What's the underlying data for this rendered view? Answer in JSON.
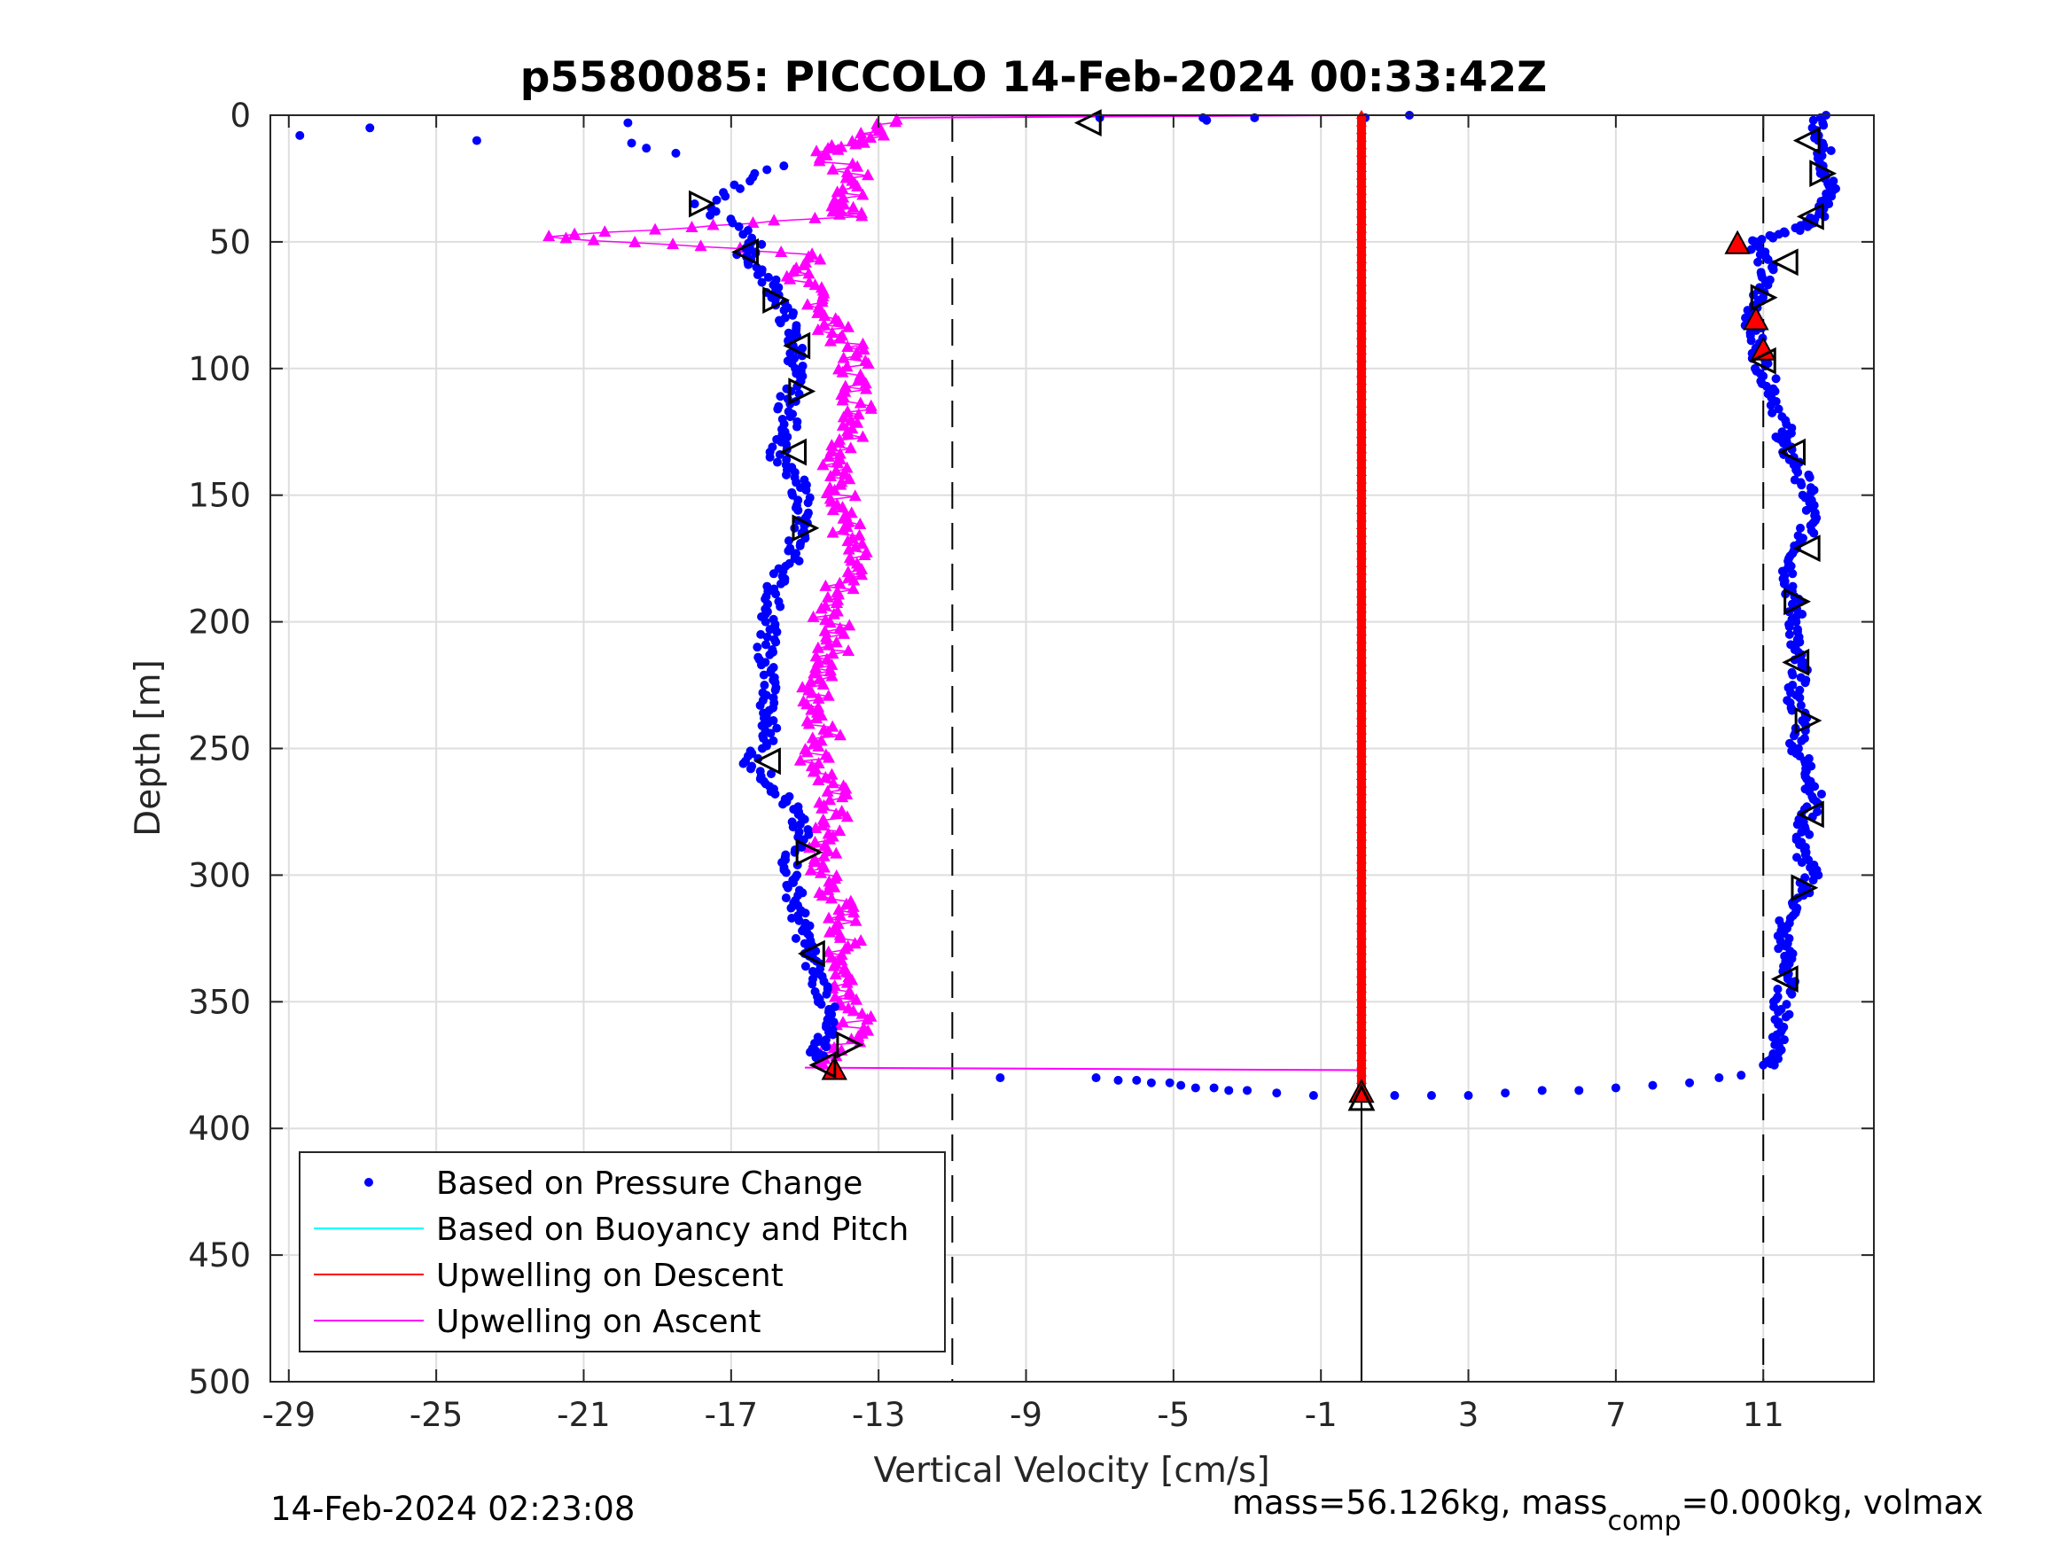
{
  "chart_data": {
    "type": "scatter",
    "title": "p5580085: PICCOLO 14-Feb-2024 00:33:42Z",
    "xlabel": "Vertical Velocity [cm/s]",
    "ylabel": "Depth [m]",
    "xlim": [
      -29.5,
      14
    ],
    "ylim": [
      0,
      500
    ],
    "y_reversed": true,
    "grid": true,
    "legend_position": "bottom-left",
    "x_ticks": [
      -29,
      -25,
      -21,
      -17,
      -13,
      -9,
      -5,
      -1,
      3,
      7,
      11
    ],
    "x_tick_labels": [
      "-29",
      "-25",
      "-21",
      "-17",
      "-13",
      "-9",
      "-5",
      "-1",
      "3",
      "7",
      "11"
    ],
    "y_ticks": [
      0,
      50,
      100,
      150,
      200,
      250,
      300,
      350,
      400,
      450,
      500
    ],
    "y_tick_labels": [
      "0",
      "50",
      "100",
      "150",
      "200",
      "250",
      "300",
      "350",
      "400",
      "450",
      "500"
    ],
    "reference_lines": [
      {
        "x": -11,
        "style": "dashed"
      },
      {
        "x": 11,
        "style": "dashed"
      },
      {
        "x": 0.1,
        "style": "solid",
        "y_range": [
          385,
          500
        ]
      }
    ],
    "series": [
      {
        "name": "Based on Pressure Change",
        "marker": "dot",
        "color": "#0000ff",
        "descent_profile": [
          [
            12.5,
            0
          ],
          [
            12.6,
            10
          ],
          [
            12.7,
            20
          ],
          [
            12.8,
            30
          ],
          [
            12.5,
            40
          ],
          [
            12,
            45
          ],
          [
            10.8,
            50
          ],
          [
            11.1,
            60
          ],
          [
            10.9,
            70
          ],
          [
            10.7,
            80
          ],
          [
            10.8,
            90
          ],
          [
            11.0,
            100
          ],
          [
            11.3,
            110
          ],
          [
            11.6,
            125
          ],
          [
            11.5,
            130
          ],
          [
            12.0,
            140
          ],
          [
            12.2,
            150
          ],
          [
            12.3,
            160
          ],
          [
            12.0,
            170
          ],
          [
            11.7,
            180
          ],
          [
            11.8,
            190
          ],
          [
            11.9,
            200
          ],
          [
            11.8,
            210
          ],
          [
            12.0,
            220
          ],
          [
            11.8,
            230
          ],
          [
            12.1,
            240
          ],
          [
            11.9,
            250
          ],
          [
            12.3,
            260
          ],
          [
            12.4,
            270
          ],
          [
            12.1,
            280
          ],
          [
            12.0,
            290
          ],
          [
            12.3,
            300
          ],
          [
            12.0,
            310
          ],
          [
            11.5,
            320
          ],
          [
            11.6,
            330
          ],
          [
            11.7,
            340
          ],
          [
            11.5,
            350
          ],
          [
            11.5,
            360
          ],
          [
            11.4,
            370
          ],
          [
            11.3,
            375
          ]
        ],
        "ascent_profile": [
          [
            -15.8,
            20
          ],
          [
            -17.8,
            35
          ],
          [
            -16.3,
            50
          ],
          [
            -16.6,
            55
          ],
          [
            -16.0,
            65
          ],
          [
            -15.6,
            75
          ],
          [
            -15.4,
            85
          ],
          [
            -15.2,
            95
          ],
          [
            -15.3,
            105
          ],
          [
            -15.5,
            115
          ],
          [
            -15.4,
            125
          ],
          [
            -15.8,
            135
          ],
          [
            -15.2,
            145
          ],
          [
            -15.0,
            155
          ],
          [
            -15.2,
            165
          ],
          [
            -15.3,
            175
          ],
          [
            -15.8,
            185
          ],
          [
            -15.9,
            195
          ],
          [
            -16.0,
            205
          ],
          [
            -16.1,
            215
          ],
          [
            -15.9,
            225
          ],
          [
            -16.1,
            235
          ],
          [
            -15.9,
            245
          ],
          [
            -16.5,
            255
          ],
          [
            -15.8,
            265
          ],
          [
            -15.3,
            275
          ],
          [
            -15.1,
            285
          ],
          [
            -15.4,
            295
          ],
          [
            -15.3,
            305
          ],
          [
            -15.2,
            315
          ],
          [
            -15.0,
            325
          ],
          [
            -14.8,
            335
          ],
          [
            -14.5,
            345
          ],
          [
            -14.4,
            355
          ],
          [
            -14.5,
            365
          ],
          [
            -14.7,
            372
          ]
        ],
        "surface_points": [
          [
            -28.7,
            8
          ],
          [
            -26.8,
            5
          ],
          [
            -23.9,
            10
          ],
          [
            -19.8,
            3
          ],
          [
            -19.7,
            11
          ],
          [
            -19.3,
            13
          ],
          [
            -18.5,
            15
          ],
          [
            -7,
            1
          ],
          [
            -4.2,
            1
          ],
          [
            -4.1,
            2
          ],
          [
            -2.8,
            1
          ],
          [
            1.4,
            0
          ],
          [
            0.2,
            1
          ]
        ],
        "bottom_transition": [
          [
            -14.2,
            379
          ],
          [
            -9.7,
            380
          ],
          [
            -7.1,
            380
          ],
          [
            -6.5,
            381
          ],
          [
            -6.0,
            381
          ],
          [
            -5.6,
            382
          ],
          [
            -5.1,
            382
          ],
          [
            -4.8,
            383
          ],
          [
            -4.4,
            384
          ],
          [
            -3.9,
            384
          ],
          [
            -3.5,
            385
          ],
          [
            -3.0,
            385
          ],
          [
            -2.2,
            386
          ],
          [
            -1.2,
            387
          ],
          [
            0.1,
            387
          ],
          [
            1.0,
            387
          ],
          [
            2.0,
            387
          ],
          [
            3.0,
            387
          ],
          [
            4.0,
            386
          ],
          [
            5.0,
            385
          ],
          [
            6.0,
            385
          ],
          [
            7.0,
            384
          ],
          [
            8.0,
            383
          ],
          [
            9.0,
            382
          ],
          [
            9.8,
            380
          ],
          [
            10.4,
            379
          ],
          [
            11.0,
            375
          ]
        ]
      },
      {
        "name": "Based on Buoyancy and Pitch",
        "marker": "line",
        "color": "#00ffff",
        "points": []
      },
      {
        "name": "Upwelling on Descent",
        "marker": "filled-triangle",
        "color": "#ff0000",
        "profile": [
          [
            0.1,
            0
          ],
          [
            0.1,
            385
          ]
        ],
        "highlight_points": [
          [
            10.3,
            51
          ],
          [
            10.8,
            81
          ],
          [
            11.0,
            93
          ],
          [
            -14.2,
            377
          ],
          [
            0.1,
            386
          ]
        ]
      },
      {
        "name": "Upwelling on Ascent",
        "marker": "filled-triangle",
        "color": "#ff00ff",
        "profile": [
          [
            -12.5,
            2
          ],
          [
            -13.4,
            10
          ],
          [
            -14.5,
            15
          ],
          [
            -13.6,
            25
          ],
          [
            -14.0,
            35
          ],
          [
            -13.8,
            40
          ],
          [
            -21.9,
            48
          ],
          [
            -14.8,
            55
          ],
          [
            -15.2,
            65
          ],
          [
            -14.5,
            75
          ],
          [
            -14.2,
            85
          ],
          [
            -13.6,
            95
          ],
          [
            -13.7,
            105
          ],
          [
            -13.5,
            115
          ],
          [
            -13.6,
            125
          ],
          [
            -14.0,
            135
          ],
          [
            -14.2,
            145
          ],
          [
            -13.8,
            155
          ],
          [
            -13.9,
            165
          ],
          [
            -13.7,
            175
          ],
          [
            -14.0,
            185
          ],
          [
            -14.5,
            195
          ],
          [
            -14.1,
            205
          ],
          [
            -14.3,
            215
          ],
          [
            -14.8,
            225
          ],
          [
            -14.6,
            235
          ],
          [
            -14.4,
            245
          ],
          [
            -14.7,
            255
          ],
          [
            -14.3,
            265
          ],
          [
            -14.2,
            275
          ],
          [
            -14.5,
            285
          ],
          [
            -14.6,
            295
          ],
          [
            -14.3,
            305
          ],
          [
            -14.0,
            315
          ],
          [
            -13.9,
            325
          ],
          [
            -14.0,
            335
          ],
          [
            -13.8,
            345
          ],
          [
            -13.6,
            355
          ],
          [
            -13.8,
            365
          ],
          [
            -14.5,
            375
          ]
        ],
        "top_transition": [
          [
            -12.5,
            1
          ],
          [
            -0.1,
            0
          ]
        ],
        "bottom_transition": [
          [
            -15.0,
            376
          ],
          [
            0.1,
            377
          ]
        ]
      }
    ],
    "open_triangle_markers": [
      {
        "x": -7.3,
        "y": 3,
        "dir": "left"
      },
      {
        "x": 12.2,
        "y": 10,
        "dir": "left"
      },
      {
        "x": 12.6,
        "y": 23,
        "dir": "right"
      },
      {
        "x": 12.3,
        "y": 40,
        "dir": "left"
      },
      {
        "x": 11.6,
        "y": 58,
        "dir": "left"
      },
      {
        "x": 11.0,
        "y": 72,
        "dir": "right"
      },
      {
        "x": 11.0,
        "y": 97,
        "dir": "left"
      },
      {
        "x": 11.8,
        "y": 133,
        "dir": "left"
      },
      {
        "x": 12.2,
        "y": 171,
        "dir": "left"
      },
      {
        "x": 11.9,
        "y": 192,
        "dir": "right"
      },
      {
        "x": 11.9,
        "y": 216,
        "dir": "left"
      },
      {
        "x": 12.2,
        "y": 239,
        "dir": "right"
      },
      {
        "x": 12.3,
        "y": 276,
        "dir": "left"
      },
      {
        "x": 12.1,
        "y": 305,
        "dir": "right"
      },
      {
        "x": 11.6,
        "y": 341,
        "dir": "left"
      },
      {
        "x": -17.8,
        "y": 35,
        "dir": "right"
      },
      {
        "x": -16.6,
        "y": 54,
        "dir": "left"
      },
      {
        "x": -15.8,
        "y": 73,
        "dir": "right"
      },
      {
        "x": -15.2,
        "y": 91,
        "dir": "left"
      },
      {
        "x": -15.1,
        "y": 109,
        "dir": "right"
      },
      {
        "x": -15.3,
        "y": 133,
        "dir": "left"
      },
      {
        "x": -15.0,
        "y": 163,
        "dir": "right"
      },
      {
        "x": -16.0,
        "y": 255,
        "dir": "left"
      },
      {
        "x": -14.9,
        "y": 291,
        "dir": "right"
      },
      {
        "x": -14.8,
        "y": 331,
        "dir": "left"
      },
      {
        "x": -13.8,
        "y": 367,
        "dir": "right"
      },
      {
        "x": -14.5,
        "y": 375,
        "dir": "left"
      },
      {
        "x": 0.1,
        "y": 388,
        "dir": "up"
      }
    ]
  },
  "legend": [
    {
      "label": "Based on Pressure Change",
      "symbol": "dot",
      "color": "#0000ff"
    },
    {
      "label": "Based on Buoyancy and Pitch",
      "symbol": "line",
      "color": "#00ffff"
    },
    {
      "label": "Upwelling on Descent",
      "symbol": "line",
      "color": "#ff0000"
    },
    {
      "label": "Upwelling on Ascent",
      "symbol": "line",
      "color": "#ff00ff"
    }
  ],
  "footer": {
    "timestamp": "14-Feb-2024 02:23:08",
    "mass_text": "mass=56.126kg, mass",
    "mass_subscript": "comp",
    "mass_rest": "=0.000kg, volmax"
  }
}
